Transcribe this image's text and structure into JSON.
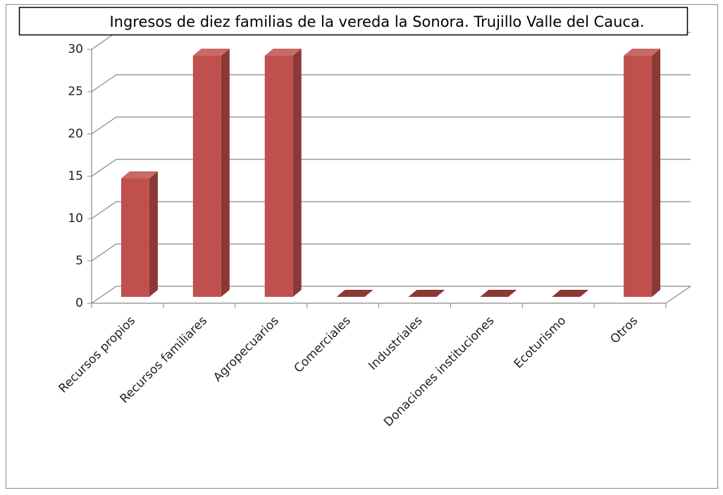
{
  "chart_data": {
    "type": "bar3d",
    "title": "Ingresos de  diez familias de la vereda la Sonora. Trujillo Valle del Cauca.",
    "categories": [
      "Recursos propios",
      "Recursos familiares",
      "Agropecuarios",
      "Comerciales",
      "Industriales",
      "Donaciones instituciones",
      "Ecoturismo",
      "Otros"
    ],
    "values": [
      14,
      28.5,
      28.5,
      0,
      0,
      0,
      0,
      28.5
    ],
    "color": "#c0504d",
    "ylim": [
      0,
      30
    ],
    "yticks": [
      0,
      5,
      10,
      15,
      20,
      25,
      30
    ],
    "grid": true
  }
}
